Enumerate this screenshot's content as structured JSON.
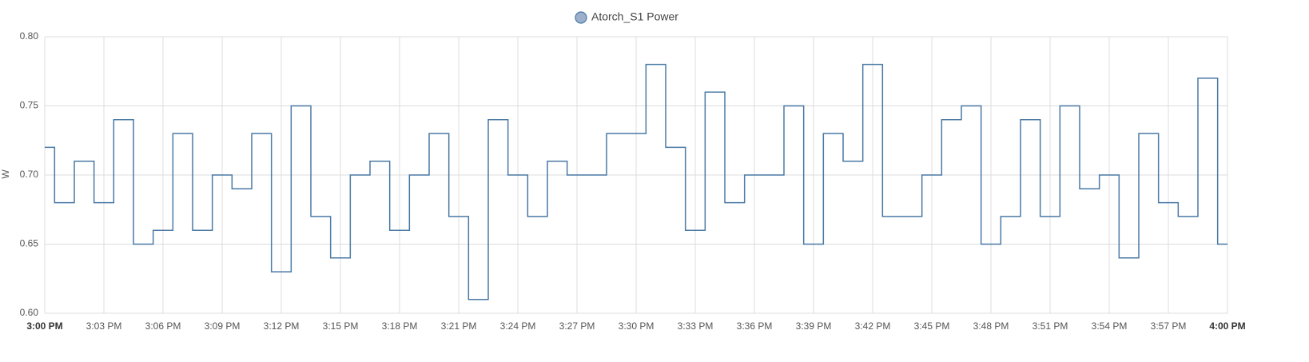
{
  "chart_data": {
    "type": "step-line",
    "y_label": "W",
    "x": [
      0,
      0.5,
      1.5,
      2.5,
      3.5,
      4.5,
      5.5,
      6.5,
      7.5,
      8.5,
      9.5,
      10.5,
      11.5,
      12.5,
      13.5,
      14.5,
      15.5,
      16.5,
      17.5,
      18.5,
      19.5,
      20.5,
      21.5,
      22.5,
      23.5,
      24.5,
      25.5,
      26.5,
      28.5,
      30.5,
      31.5,
      32.5,
      33.5,
      34.5,
      35.5,
      37.5,
      38.5,
      39.5,
      40.5,
      41.5,
      42.5,
      44.5,
      45.5,
      46.5,
      47.5,
      48.5,
      49.5,
      50.5,
      51.5,
      52.5,
      53.5,
      54.5,
      55.5,
      56.5,
      57.5,
      58.5,
      59.5
    ],
    "series": [
      {
        "name": "Atorch_S1 Power",
        "color": "#4a79a5",
        "legend_fill": "#9cb0cc",
        "values": [
          0.72,
          0.68,
          0.71,
          0.68,
          0.74,
          0.65,
          0.66,
          0.73,
          0.66,
          0.7,
          0.69,
          0.73,
          0.63,
          0.75,
          0.67,
          0.64,
          0.7,
          0.71,
          0.66,
          0.7,
          0.73,
          0.67,
          0.61,
          0.74,
          0.7,
          0.67,
          0.71,
          0.7,
          0.73,
          0.78,
          0.72,
          0.66,
          0.76,
          0.68,
          0.7,
          0.75,
          0.65,
          0.73,
          0.71,
          0.78,
          0.67,
          0.7,
          0.74,
          0.75,
          0.65,
          0.67,
          0.74,
          0.67,
          0.75,
          0.69,
          0.7,
          0.64,
          0.73,
          0.68,
          0.67,
          0.77,
          0.65
        ]
      }
    ],
    "xlim": [
      0,
      60
    ],
    "xticks": [
      {
        "value": 0,
        "label": "3:00 PM"
      },
      {
        "value": 3,
        "label": "3:03 PM"
      },
      {
        "value": 6,
        "label": "3:06 PM"
      },
      {
        "value": 9,
        "label": "3:09 PM"
      },
      {
        "value": 12,
        "label": "3:12 PM"
      },
      {
        "value": 15,
        "label": "3:15 PM"
      },
      {
        "value": 18,
        "label": "3:18 PM"
      },
      {
        "value": 21,
        "label": "3:21 PM"
      },
      {
        "value": 24,
        "label": "3:24 PM"
      },
      {
        "value": 27,
        "label": "3:27 PM"
      },
      {
        "value": 30,
        "label": "3:30 PM"
      },
      {
        "value": 33,
        "label": "3:33 PM"
      },
      {
        "value": 36,
        "label": "3:36 PM"
      },
      {
        "value": 39,
        "label": "3:39 PM"
      },
      {
        "value": 42,
        "label": "3:42 PM"
      },
      {
        "value": 45,
        "label": "3:45 PM"
      },
      {
        "value": 48,
        "label": "3:48 PM"
      },
      {
        "value": 51,
        "label": "3:51 PM"
      },
      {
        "value": 54,
        "label": "3:54 PM"
      },
      {
        "value": 57,
        "label": "3:57 PM"
      },
      {
        "value": 60,
        "label": "4:00 PM"
      }
    ],
    "ylim": [
      0.6,
      0.8
    ],
    "yticks": [
      {
        "value": 0.6,
        "label": "0.60"
      },
      0.65,
      {
        "value": 0.7,
        "label": "0.70"
      },
      0.75,
      {
        "value": 0.8,
        "label": "0.80"
      }
    ],
    "grid": true
  }
}
